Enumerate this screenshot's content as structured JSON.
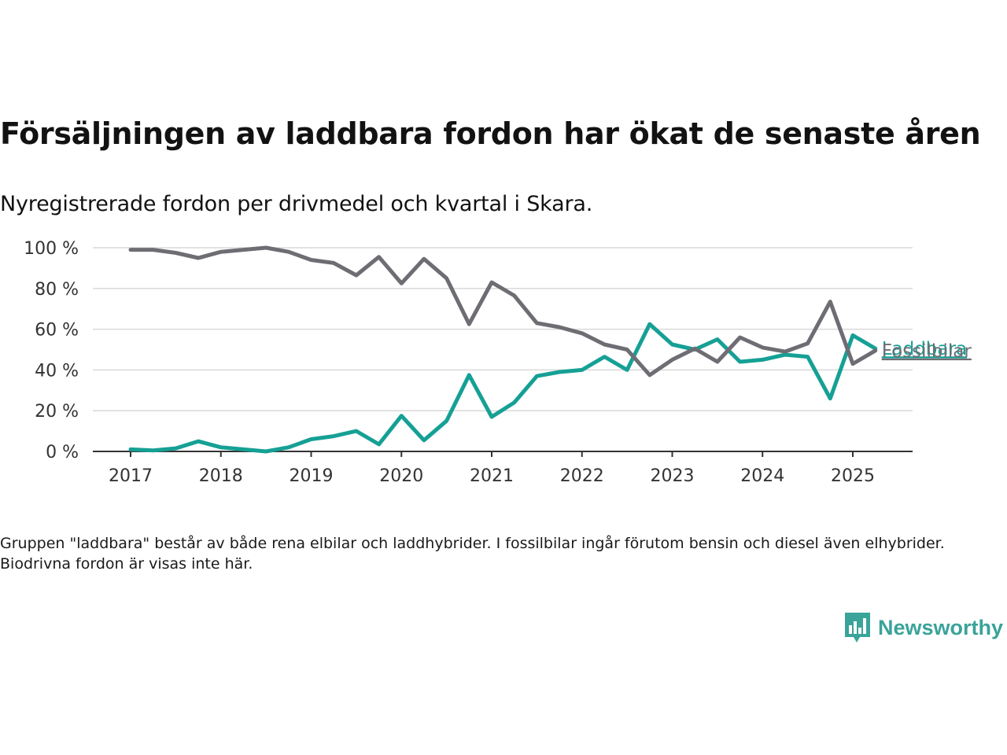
{
  "title": "Försäljningen av laddbara fordon har ökat de senaste åren",
  "subtitle": "Nyregistrerade fordon per drivmedel och kvartal i Skara.",
  "note": "Gruppen \"laddbara\" består av både rena elbilar och laddhybrider. I fossilbilar ingår förutom bensin och diesel även elhybrider. Biodrivna fordon är visas inte här.",
  "brand": {
    "name": "Newsworthy",
    "icon": "bar-chart-speech-bubble-icon",
    "color": "#3aa39a"
  },
  "chart_data": {
    "type": "line",
    "x_start_year": 2017,
    "quarters_per_year": 4,
    "x_ticks": [
      2017,
      2018,
      2019,
      2020,
      2021,
      2022,
      2023,
      2024,
      2025
    ],
    "xlim": [
      2017,
      2025.5
    ],
    "ylim": [
      0,
      100
    ],
    "y_ticks": [
      0,
      20,
      40,
      60,
      80,
      100
    ],
    "y_tick_labels": [
      "0 %",
      "20 %",
      "40 %",
      "60 %",
      "80 %",
      "100 %"
    ],
    "grid": "horizontal",
    "series": [
      {
        "name": "Fossilbilar",
        "color": "#6e6d73",
        "values": [
          99,
          99,
          97.5,
          95,
          98,
          99,
          100,
          98,
          94,
          92.5,
          86.5,
          95.5,
          82.5,
          94.5,
          85,
          62.5,
          83,
          76.5,
          63,
          61,
          58,
          52.5,
          50,
          37.5,
          45,
          50.5,
          44,
          56,
          51,
          49,
          53,
          73.5,
          43,
          49.5
        ]
      },
      {
        "name": "Laddbara",
        "color": "#16a095",
        "values": [
          1,
          0.5,
          1.5,
          5,
          2,
          1,
          0,
          2,
          6,
          7.5,
          10,
          3.5,
          17.5,
          5.5,
          15,
          37.5,
          17,
          24,
          37,
          39,
          40,
          46.5,
          40,
          62.5,
          52.5,
          50,
          55,
          44,
          45,
          47.5,
          46.5,
          26,
          57,
          50.5
        ]
      }
    ]
  }
}
